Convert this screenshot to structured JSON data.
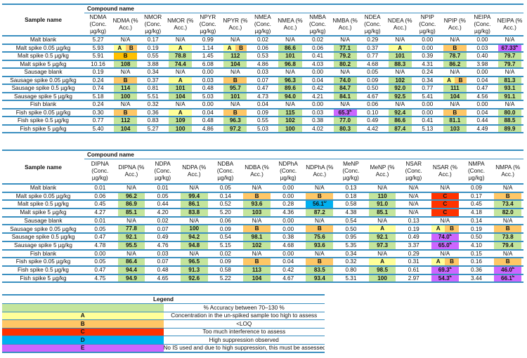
{
  "colors": {
    "g": "#c4e59c",
    "a": "#ffff99",
    "b": "#ffc766",
    "b2": "#ffc000",
    "c": "#ff3300",
    "d": "#00b0f0",
    "e": "#cc66ff"
  },
  "table1": {
    "sample_header": "Sample name",
    "compound_header": "Compound name",
    "columns": [
      "NDMA (Conc. µg/kg)",
      "NDMA (% Acc.)",
      "NMOR (Conc. µg/kg)",
      "NMOR (% Acc.)",
      "NPYR (Conc. µg/kg)",
      "NPYR (% Acc.)",
      "NMEA (Conc. µg/kg)",
      "NMEA (% Acc.)",
      "NMBA (Conc. µg/kg)",
      "NMBA (% Acc.)",
      "NDEA (Conc. µg/kg)",
      "NDEA (% Acc.)",
      "NPIP (Conc. µg/kg)",
      "NPIP (% Acc.)",
      "NEIPA (Conc. µg/kg)",
      "NEIPA (% Acc.)"
    ],
    "rows": [
      {
        "name": "Malt blank",
        "cells": [
          "5.27",
          "N/A",
          "0.17",
          "N/A",
          "0.99",
          "N/A",
          "0.02",
          "N/A",
          "0.02",
          "N/A",
          "0.29",
          "N/A",
          "0.00",
          "N/A",
          "0.00",
          "N/A"
        ]
      },
      {
        "name": "Malt spike 0.05 µg/kg",
        "cells": [
          "5.93",
          {
            "k": "ab",
            "t": "A",
            "t2": "B"
          },
          "0.19",
          {
            "k": "a",
            "t": "A"
          },
          "1.14",
          {
            "k": "ab",
            "t": "A",
            "t2": "B"
          },
          "0.06",
          {
            "k": "g",
            "t": "86.6"
          },
          "0.06",
          {
            "k": "g",
            "t": "77.1"
          },
          "0.37",
          {
            "k": "a",
            "t": "A"
          },
          "0.00",
          {
            "k": "b",
            "t": "B"
          },
          "0.03",
          {
            "k": "e",
            "t": "67.33",
            "sup": "E"
          }
        ]
      },
      {
        "name": "Malt spike 0.5 µg/kg",
        "cells": [
          "5.91",
          {
            "k": "b2",
            "t": "B"
          },
          "0.55",
          {
            "k": "g",
            "t": "78.8"
          },
          "1.45",
          {
            "k": "g",
            "t": "112"
          },
          "0.53",
          {
            "k": "g",
            "t": "101"
          },
          "0.41",
          {
            "k": "g",
            "t": "79.2"
          },
          "0.77",
          {
            "k": "g",
            "t": "101"
          },
          "0.39",
          {
            "k": "g",
            "t": "78.7"
          },
          "0.40",
          {
            "k": "g",
            "t": "79.7"
          }
        ]
      },
      {
        "name": "Malt spike 5 µg/kg",
        "cells": [
          "10.16",
          {
            "k": "g",
            "t": "108"
          },
          "3.88",
          {
            "k": "g",
            "t": "74.4"
          },
          "6.08",
          {
            "k": "g",
            "t": "104"
          },
          "4.86",
          {
            "k": "g",
            "t": "96.8"
          },
          "4.03",
          {
            "k": "g",
            "t": "80.2"
          },
          "4.68",
          {
            "k": "g",
            "t": "88.3"
          },
          "4.31",
          {
            "k": "g",
            "t": "86.2"
          },
          "3.98",
          {
            "k": "g",
            "t": "79.7"
          }
        ]
      },
      {
        "name": "Sausage blank",
        "cells": [
          "0.19",
          "N/A",
          "0.34",
          "N/A",
          "0.00",
          "N/A",
          "0.03",
          "N/A",
          "0.00",
          "N/A",
          "0.05",
          "N/A",
          "0.24",
          "N/A",
          "0.00",
          "N/A"
        ]
      },
      {
        "name": "Sausage spike 0.05 µg/kg",
        "cells": [
          "0.24",
          {
            "k": "b",
            "t": "B"
          },
          "0.37",
          {
            "k": "a",
            "t": "A"
          },
          "0.03",
          {
            "k": "b",
            "t": "B"
          },
          "0.07",
          {
            "k": "g",
            "t": "96.3"
          },
          "0.04",
          {
            "k": "g",
            "t": "74.0"
          },
          "0.09",
          {
            "k": "g",
            "t": "102"
          },
          "0.34",
          {
            "k": "ab",
            "t": "A",
            "t2": "B"
          },
          "0.04",
          {
            "k": "g",
            "t": "81.3"
          }
        ]
      },
      {
        "name": "Sausage spike 0.5 µg/kg",
        "cells": [
          "0.74",
          {
            "k": "g",
            "t": "114"
          },
          "0.81",
          {
            "k": "g",
            "t": "101"
          },
          "0.48",
          {
            "k": "g",
            "t": "95.7"
          },
          "0.47",
          {
            "k": "g",
            "t": "89.6"
          },
          "0.42",
          {
            "k": "g",
            "t": "84.7"
          },
          "0.50",
          {
            "k": "g",
            "t": "92.0"
          },
          "0.77",
          {
            "k": "g",
            "t": "111"
          },
          "0.47",
          {
            "k": "g",
            "t": "93.1"
          }
        ]
      },
      {
        "name": "Sausage spike 5 µg/kg",
        "cells": [
          "5.18",
          {
            "k": "g",
            "t": "100"
          },
          "5.51",
          {
            "k": "g",
            "t": "104"
          },
          "5.03",
          {
            "k": "g",
            "t": "101"
          },
          "4.73",
          {
            "k": "g",
            "t": "94.0"
          },
          "4.21",
          {
            "k": "g",
            "t": "84.1"
          },
          "4.67",
          {
            "k": "g",
            "t": "92.5"
          },
          "5.41",
          {
            "k": "g",
            "t": "104"
          },
          "4.56",
          {
            "k": "g",
            "t": "91.1"
          }
        ]
      },
      {
        "name": "Fish blank",
        "cells": [
          "0.24",
          "N/A",
          "0.32",
          "N/A",
          "0.00",
          "N/A",
          "0.04",
          "N/A",
          "0.00",
          "N/A",
          "0.06",
          "N/A",
          "0.00",
          "N/A",
          "0.00",
          "N/A"
        ]
      },
      {
        "name": "Fish spike 0.05 µg/kg",
        "cells": [
          "0.30",
          {
            "k": "b",
            "t": "B"
          },
          "0.36",
          {
            "k": "a",
            "t": "A"
          },
          "0.04",
          {
            "k": "b",
            "t": "B"
          },
          "0.09",
          {
            "k": "g",
            "t": "115"
          },
          "0.03",
          {
            "k": "e",
            "t": "65.3",
            "sup": "E"
          },
          "0.10",
          {
            "k": "g",
            "t": "92.4"
          },
          "0.00",
          {
            "k": "b",
            "t": "B"
          },
          "0.04",
          {
            "k": "g",
            "t": "80.0"
          }
        ]
      },
      {
        "name": "Fish spike 0.5 µg/kg",
        "cells": [
          "0.77",
          {
            "k": "g",
            "t": "112"
          },
          "0.83",
          {
            "k": "g",
            "t": "109"
          },
          "0.48",
          {
            "k": "g",
            "t": "96.3"
          },
          "0.55",
          {
            "k": "g",
            "t": "102"
          },
          "0.38",
          {
            "k": "g",
            "t": "77.0"
          },
          "0.49",
          {
            "k": "g",
            "t": "86.6"
          },
          "0.41",
          {
            "k": "g",
            "t": "81.1"
          },
          "0.44",
          {
            "k": "g",
            "t": "88.5"
          }
        ]
      },
      {
        "name": "Fish spike 5 µg/kg",
        "cells": [
          "5.40",
          {
            "k": "g",
            "t": "104"
          },
          "5.27",
          {
            "k": "g",
            "t": "100"
          },
          "4.86",
          {
            "k": "g",
            "t": "97.2"
          },
          "5.03",
          {
            "k": "g",
            "t": "100"
          },
          "4.02",
          {
            "k": "g",
            "t": "80.3"
          },
          "4.42",
          {
            "k": "g",
            "t": "87.4"
          },
          "5.13",
          {
            "k": "g",
            "t": "103"
          },
          "4.49",
          {
            "k": "g",
            "t": "89.9"
          }
        ]
      }
    ]
  },
  "table2": {
    "sample_header": "Sample name",
    "compound_header": "Compound name",
    "columns": [
      "DIPNA (Conc. µg/kg)",
      "DIPNA (% Acc.)",
      "NDPA (Conc. µg/kg)",
      "NDPA (% Acc.)",
      "NDBA (Conc. µg/kg)",
      "NDBA (% Acc.)",
      "NDPhA (Conc. µg/kg)",
      "NDPhA (% Acc.)",
      "MeNP (Conc. µg/kg)",
      "MeNP (% Acc.)",
      "NSAR (Conc. µg/kg)",
      "NSAR (% Acc.)",
      "NMPA (Conc. µg/kg)",
      "NMPA (% Acc.)"
    ],
    "rows": [
      {
        "name": "Malt blank",
        "cells": [
          "0.01",
          "N/A",
          "0.01",
          "N/A",
          "0.05",
          "N/A",
          "0.00",
          "N/A",
          "0.13",
          "N/A",
          "N/A",
          "N/A",
          "0.09",
          "N/A"
        ]
      },
      {
        "name": "Malt spike 0.05 µg/kg",
        "cells": [
          "0.06",
          {
            "k": "g",
            "t": "96.2"
          },
          "0.05",
          {
            "k": "g",
            "t": "99.4"
          },
          "0.14",
          {
            "k": "b",
            "t": "B"
          },
          "0.00",
          {
            "k": "b",
            "t": "B"
          },
          "0.18",
          {
            "k": "g",
            "t": "110"
          },
          "N/A",
          {
            "k": "c",
            "t": "C"
          },
          "0.17",
          {
            "k": "b",
            "t": "B"
          }
        ]
      },
      {
        "name": "Malt spike 0.5 µg/kg",
        "cells": [
          "0.45",
          {
            "k": "g",
            "t": "86.9"
          },
          "0.44",
          {
            "k": "g",
            "t": "86.1"
          },
          "0.52",
          {
            "k": "g",
            "t": "93.6"
          },
          "0.28",
          {
            "k": "d",
            "t": "56.1",
            "sup": "D"
          },
          "0.58",
          {
            "k": "g",
            "t": "91.0"
          },
          "N/A",
          {
            "k": "c",
            "t": "C"
          },
          "0.45",
          {
            "k": "g",
            "t": "73.4"
          }
        ]
      },
      {
        "name": "Malt spike 5 µg/kg",
        "cells": [
          "4.27",
          {
            "k": "g",
            "t": "85.1"
          },
          "4.20",
          {
            "k": "g",
            "t": "83.8"
          },
          "5.20",
          {
            "k": "g",
            "t": "103"
          },
          "4.36",
          {
            "k": "g",
            "t": "87.2"
          },
          "4.38",
          {
            "k": "g",
            "t": "85.1"
          },
          "N/A",
          {
            "k": "c",
            "t": "C"
          },
          "4.18",
          {
            "k": "g",
            "t": "82.0"
          }
        ]
      },
      {
        "name": "Sausage blank",
        "cells": [
          "0.01",
          "N/A",
          "0.02",
          "N/A",
          "0.06",
          "N/A",
          "0.00",
          "N/A",
          "0.54",
          "N/A",
          "0.13",
          "N/A",
          "0.14",
          "N/A"
        ]
      },
      {
        "name": "Sausage spike 0.05 µg/kg",
        "cells": [
          "0.05",
          {
            "k": "g",
            "t": "77.8"
          },
          "0.07",
          {
            "k": "g",
            "t": "100"
          },
          "0.09",
          {
            "k": "b",
            "t": "B"
          },
          "0.00",
          {
            "k": "b",
            "t": "B"
          },
          "0.50",
          {
            "k": "a",
            "t": "A"
          },
          "0.19",
          {
            "k": "ab",
            "t": "A",
            "t2": "B"
          },
          "0.19",
          {
            "k": "b",
            "t": "B"
          }
        ]
      },
      {
        "name": "Sausage spike 0.5 µg/kg",
        "cells": [
          "0.47",
          {
            "k": "g",
            "t": "92.1"
          },
          "0.49",
          {
            "k": "g",
            "t": "94.2"
          },
          "0.54",
          {
            "k": "g",
            "t": "98.1"
          },
          "0.38",
          {
            "k": "g",
            "t": "75.6"
          },
          "0.95",
          {
            "k": "g",
            "t": "92.1"
          },
          "0.49",
          {
            "k": "e",
            "t": "74.0",
            "sup": "E"
          },
          "0.50",
          {
            "k": "g",
            "t": "73.8"
          }
        ]
      },
      {
        "name": "Sausage spike 5 µg/kg",
        "cells": [
          "4.78",
          {
            "k": "g",
            "t": "95.5"
          },
          "4.76",
          {
            "k": "g",
            "t": "94.8"
          },
          "5.15",
          {
            "k": "g",
            "t": "102"
          },
          "4.68",
          {
            "k": "g",
            "t": "93.6"
          },
          "5.35",
          {
            "k": "g",
            "t": "97.3"
          },
          "3.37",
          {
            "k": "e",
            "t": "65.0",
            "sup": "E"
          },
          "4.10",
          {
            "k": "g",
            "t": "79.4"
          }
        ]
      },
      {
        "name": "Fish blank",
        "cells": [
          "0.00",
          "N/A",
          "0.03",
          "N/A",
          "0.02",
          "N/A",
          "0.00",
          "N/A",
          "0.34",
          "N/A",
          "0.29",
          "N/A",
          "0.15",
          "N/A"
        ]
      },
      {
        "name": "Fish spike 0.05 µg/kg",
        "cells": [
          "0.05",
          {
            "k": "g",
            "t": "86.4"
          },
          "0.07",
          {
            "k": "g",
            "t": "96.5"
          },
          "0.09",
          {
            "k": "b",
            "t": "B"
          },
          "0.04",
          {
            "k": "b",
            "t": "B"
          },
          "0.32",
          {
            "k": "a",
            "t": "A"
          },
          "0.31",
          {
            "k": "ab",
            "t": "A",
            "t2": "B"
          },
          "0.16",
          {
            "k": "b",
            "t": "B"
          }
        ]
      },
      {
        "name": "Fish spike 0.5 µg/kg",
        "cells": [
          "0.47",
          {
            "k": "g",
            "t": "94.4"
          },
          "0.48",
          {
            "k": "g",
            "t": "91.3"
          },
          "0.58",
          {
            "k": "g",
            "t": "113"
          },
          "0.42",
          {
            "k": "g",
            "t": "83.5"
          },
          "0.80",
          {
            "k": "g",
            "t": "98.5"
          },
          "0.61",
          {
            "k": "e",
            "t": "69.3",
            "sup": "E"
          },
          "0.36",
          {
            "k": "e",
            "t": "46.0",
            "sup": "E"
          }
        ]
      },
      {
        "name": "Fish spike 5 µg/kg",
        "cells": [
          "4.75",
          {
            "k": "g",
            "t": "94.9"
          },
          "4.65",
          {
            "k": "g",
            "t": "92.6"
          },
          "5.22",
          {
            "k": "g",
            "t": "104"
          },
          "4.67",
          {
            "k": "g",
            "t": "93.4"
          },
          "5.31",
          {
            "k": "g",
            "t": "100"
          },
          "2.97",
          {
            "k": "e",
            "t": "54.3",
            "sup": "E"
          },
          "3.44",
          {
            "k": "e",
            "t": "66.1",
            "sup": "E"
          }
        ]
      }
    ]
  },
  "legend": {
    "title": "Legend",
    "items": [
      {
        "code": "",
        "k": "g",
        "text": "% Accuracy between 70–130 %"
      },
      {
        "code": "A",
        "k": "a",
        "text": "Concentration in the un-spiked sample too high to assess"
      },
      {
        "code": "B",
        "k": "b",
        "text": "<LOQ"
      },
      {
        "code": "C",
        "k": "c",
        "text": "Too much interference to assess"
      },
      {
        "code": "D",
        "k": "d",
        "text": "High suppression observed"
      },
      {
        "code": "E",
        "k": "e",
        "text": "No IS used and due to high suppression, this must be assessed in further work"
      }
    ]
  }
}
